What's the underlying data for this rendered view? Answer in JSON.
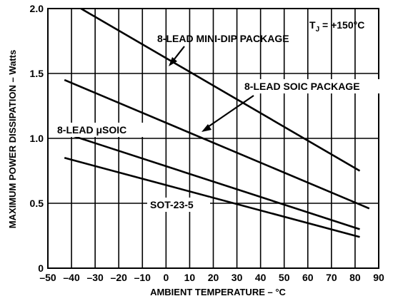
{
  "chart_data": {
    "type": "line",
    "title": "",
    "xlabel": "AMBIENT TEMPERATURE – °C",
    "ylabel": "MAXIMUM POWER DISSIPATION – Watts",
    "xlim": [
      -50,
      90
    ],
    "ylim": [
      0,
      2.0
    ],
    "x_ticks": [
      "–50",
      "–40",
      "–30",
      "–20",
      "–10",
      "0",
      "10",
      "20",
      "30",
      "40",
      "50",
      "60",
      "70",
      "80",
      "90"
    ],
    "y_ticks": [
      "0",
      "0.5",
      "1.0",
      "1.5",
      "2.0"
    ],
    "grid": true,
    "legend": "none",
    "series": [
      {
        "name": "8-LEAD MINI-DIP PACKAGE",
        "x": [
          -36,
          82
        ],
        "y": [
          2.0,
          0.75
        ]
      },
      {
        "name": "8-LEAD SOIC PACKAGE",
        "x": [
          -43,
          86
        ],
        "y": [
          1.45,
          0.46
        ]
      },
      {
        "name": "8-LEAD μSOIC",
        "x": [
          -43,
          82
        ],
        "y": [
          1.04,
          0.3
        ]
      },
      {
        "name": "SOT-23-5",
        "x": [
          -43,
          82
        ],
        "y": [
          0.85,
          0.24
        ]
      }
    ],
    "annotations": {
      "tj": "TJ = +150°C",
      "mini_dip": "8-LEAD MINI-DIP PACKAGE",
      "soic": "8-LEAD SOIC PACKAGE",
      "usoic": "8-LEAD μSOIC",
      "sot": "SOT-23-5"
    }
  }
}
